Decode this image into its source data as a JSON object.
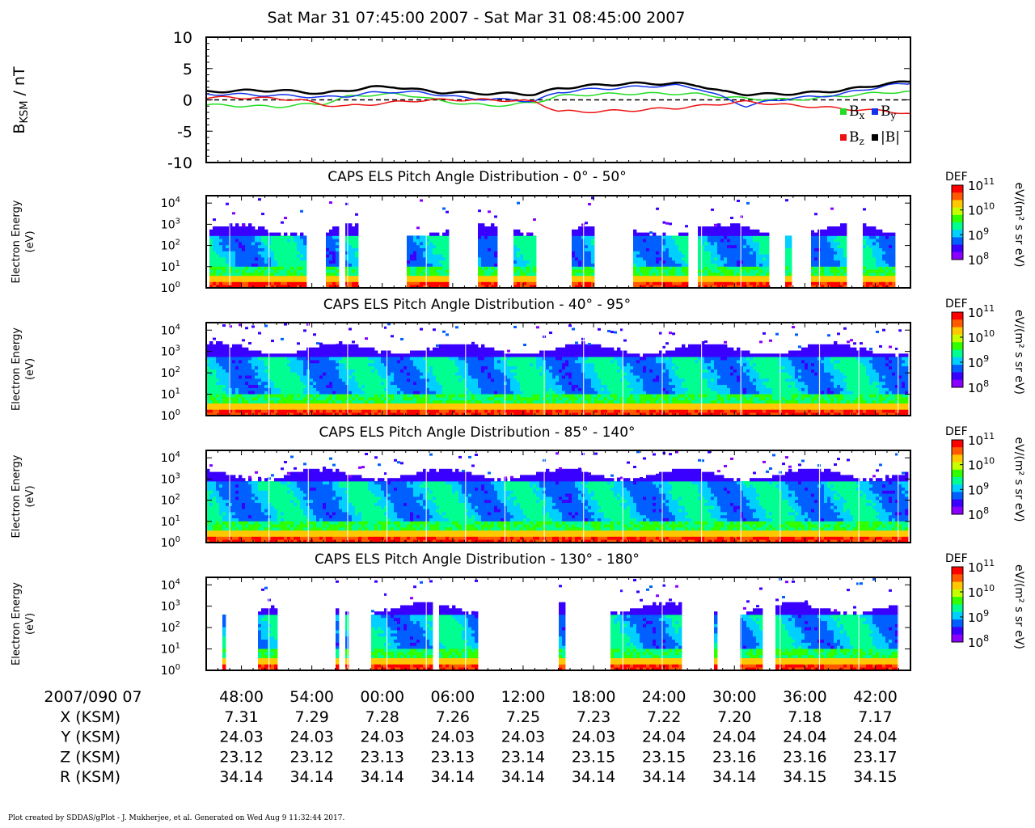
{
  "title": "Sat Mar 31 07:45:00 2007 - Sat Mar 31 08:45:00 2007",
  "footer": "Plot created by SDDAS/gPlot - J. Mukherjee, et al.  Generated on Wed Aug 9 11:32:44 2017.",
  "colors": {
    "bx": "#22dd22",
    "by": "#1133ee",
    "bz": "#ee1111",
    "bmag": "#000000",
    "colorbar": [
      "#8a00ff",
      "#3a00ff",
      "#0060ff",
      "#00d0ff",
      "#00ff90",
      "#30ff00",
      "#c8ff00",
      "#ffc800",
      "#ff5a00",
      "#ff0000"
    ]
  },
  "chart_data": [
    {
      "type": "line",
      "ylabel_main": "B",
      "ylabel_sub": "KSM",
      "ylabel_unit": " / nT",
      "ylim": [
        -10,
        10
      ],
      "yticks": [
        "10",
        "5",
        "0",
        "-5",
        "-10"
      ],
      "zero_line": "dashed",
      "legend": [
        "B",
        "x",
        "B",
        "y",
        "B",
        "z",
        "|B|"
      ],
      "x_minutes": [
        0,
        2,
        4,
        6,
        8,
        10,
        12,
        14,
        16,
        18,
        20,
        22,
        24,
        26,
        28,
        30,
        32,
        34,
        36,
        38,
        40,
        42,
        44,
        46,
        48,
        50,
        52,
        54,
        56,
        58,
        60
      ],
      "series": [
        {
          "key": "bx",
          "values": [
            -0.8,
            -0.9,
            -1.0,
            -1.1,
            -0.8,
            -0.6,
            0.5,
            0.8,
            0.9,
            0.6,
            -0.2,
            -0.6,
            -0.9,
            -0.8,
            -0.4,
            0.6,
            0.8,
            0.9,
            1.0,
            1.0,
            1.0,
            0.9,
            0.5,
            0.2,
            0.1,
            0.0,
            0.3,
            0.6,
            0.9,
            1.2,
            1.3
          ]
        },
        {
          "key": "by",
          "values": [
            0.9,
            0.9,
            0.8,
            0.7,
            0.6,
            0.4,
            0.6,
            1.1,
            1.3,
            1.2,
            0.8,
            0.3,
            0.1,
            0.0,
            -0.2,
            1.2,
            1.6,
            1.8,
            2.0,
            2.2,
            2.3,
            1.8,
            0.4,
            -1.0,
            -0.2,
            0.3,
            0.5,
            0.9,
            1.6,
            2.3,
            2.6
          ]
        },
        {
          "key": "bz",
          "values": [
            0.3,
            0.4,
            0.3,
            0.2,
            0.0,
            -0.8,
            -1.0,
            -0.7,
            -0.4,
            -0.1,
            0.0,
            0.0,
            0.0,
            -0.1,
            -0.3,
            -1.8,
            -1.9,
            -1.8,
            -1.7,
            -1.5,
            -1.3,
            -1.0,
            -0.6,
            -0.3,
            -0.6,
            -0.9,
            -1.1,
            -1.4,
            -1.6,
            -1.8,
            -2.2
          ]
        },
        {
          "key": "bmag",
          "values": [
            1.3,
            1.4,
            1.5,
            1.5,
            1.3,
            1.0,
            1.5,
            2.0,
            2.1,
            1.6,
            1.2,
            1.1,
            1.0,
            1.0,
            0.9,
            1.8,
            2.2,
            2.4,
            2.6,
            2.6,
            2.6,
            2.3,
            1.3,
            0.9,
            0.9,
            1.0,
            1.2,
            1.5,
            2.0,
            2.6,
            2.9
          ]
        }
      ]
    },
    {
      "type": "heatmap",
      "title": "CAPS ELS Pitch Angle Distribution - 0° - 50°",
      "ylabel": [
        "Electron Energy",
        "(eV)"
      ],
      "yticks": [
        "10",
        "10",
        "10",
        "10",
        "10"
      ],
      "ytick_exponents": [
        "0",
        "1",
        "2",
        "3",
        "4"
      ],
      "colorbar": {
        "label": "DEF",
        "unit": "eV/(m² s sr eV)",
        "ticks": [
          "10",
          "10",
          "10",
          "10"
        ],
        "tick_exponents": [
          "11",
          "10",
          "9",
          "8"
        ],
        "range_log10": [
          8,
          11
        ]
      },
      "coverage_minutes": [
        [
          0.3,
          8.5
        ],
        [
          10.3,
          11.3
        ],
        [
          11.8,
          13.0
        ],
        [
          17.2,
          20.6
        ],
        [
          23.2,
          24.8
        ],
        [
          26.4,
          28.2
        ],
        [
          31.2,
          33.3
        ],
        [
          36.4,
          41.2
        ],
        [
          42.0,
          48.2
        ],
        [
          49.6,
          50.0
        ],
        [
          51.6,
          54.8
        ],
        [
          56.2,
          58.9
        ]
      ],
      "core_energy_log10": [
        1.0,
        2.4
      ]
    },
    {
      "type": "heatmap",
      "title": "CAPS ELS Pitch Angle Distribution - 40° - 95°",
      "ylabel": [
        "Electron Energy",
        "(eV)"
      ],
      "yticks": [
        "10",
        "10",
        "10",
        "10",
        "10"
      ],
      "ytick_exponents": [
        "0",
        "1",
        "2",
        "3",
        "4"
      ],
      "colorbar": {
        "label": "DEF",
        "unit": "eV/(m² s sr eV)",
        "ticks": [
          "10",
          "10",
          "10",
          "10"
        ],
        "tick_exponents": [
          "11",
          "10",
          "9",
          "8"
        ],
        "range_log10": [
          8,
          11
        ]
      },
      "coverage_minutes": [
        [
          0.0,
          60.0
        ]
      ],
      "core_energy_log10": [
        1.0,
        2.8
      ]
    },
    {
      "type": "heatmap",
      "title": "CAPS ELS Pitch Angle Distribution - 85° - 140°",
      "ylabel": [
        "Electron Energy",
        "(eV)"
      ],
      "yticks": [
        "10",
        "10",
        "10",
        "10",
        "10"
      ],
      "ytick_exponents": [
        "0",
        "1",
        "2",
        "3",
        "4"
      ],
      "colorbar": {
        "label": "DEF",
        "unit": "eV/(m² s sr eV)",
        "ticks": [
          "10",
          "10",
          "10",
          "10"
        ],
        "tick_exponents": [
          "11",
          "10",
          "9",
          "8"
        ],
        "range_log10": [
          8,
          11
        ]
      },
      "coverage_minutes": [
        [
          0.0,
          60.0
        ]
      ],
      "core_energy_log10": [
        1.0,
        2.9
      ]
    },
    {
      "type": "heatmap",
      "title": "CAPS ELS Pitch Angle Distribution - 130° - 180°",
      "ylabel": [
        "Electron Energy",
        "(eV)"
      ],
      "yticks": [
        "10",
        "10",
        "10",
        "10",
        "10"
      ],
      "ytick_exponents": [
        "0",
        "1",
        "2",
        "3",
        "4"
      ],
      "colorbar": {
        "label": "DEF",
        "unit": "eV/(m² s sr eV)",
        "ticks": [
          "10",
          "10",
          "10",
          "10"
        ],
        "tick_exponents": [
          "11",
          "10",
          "9",
          "8"
        ],
        "range_log10": [
          8,
          11
        ]
      },
      "coverage_minutes": [
        [
          1.4,
          1.6
        ],
        [
          4.3,
          6.2
        ],
        [
          11.0,
          11.2
        ],
        [
          12.0,
          12.2
        ],
        [
          14.0,
          19.4
        ],
        [
          20.0,
          23.2
        ],
        [
          30.1,
          30.8
        ],
        [
          34.6,
          40.6
        ],
        [
          43.4,
          43.7
        ],
        [
          45.7,
          47.6
        ],
        [
          48.6,
          55.3
        ],
        [
          55.4,
          59.2
        ]
      ],
      "core_energy_log10": [
        1.0,
        2.6
      ]
    }
  ],
  "time_axis": {
    "row_label": "2007/090 07",
    "ticks": [
      "48:00",
      "54:00",
      "00:00",
      "06:00",
      "12:00",
      "18:00",
      "24:00",
      "30:00",
      "36:00",
      "42:00"
    ],
    "tick_minutes": [
      3,
      9,
      15,
      21,
      27,
      33,
      39,
      45,
      51,
      57
    ]
  },
  "ephemeris": [
    {
      "label": "X (KSM)",
      "values": [
        "7.31",
        "7.29",
        "7.28",
        "7.26",
        "7.25",
        "7.23",
        "7.22",
        "7.20",
        "7.18",
        "7.17"
      ]
    },
    {
      "label": "Y (KSM)",
      "values": [
        "24.03",
        "24.03",
        "24.03",
        "24.03",
        "24.03",
        "24.03",
        "24.04",
        "24.04",
        "24.04",
        "24.04"
      ]
    },
    {
      "label": "Z (KSM)",
      "values": [
        "23.12",
        "23.12",
        "23.13",
        "23.13",
        "23.14",
        "23.15",
        "23.15",
        "23.16",
        "23.16",
        "23.17"
      ]
    },
    {
      "label": "R (KSM)",
      "values": [
        "34.14",
        "34.14",
        "34.14",
        "34.14",
        "34.14",
        "34.14",
        "34.14",
        "34.14",
        "34.15",
        "34.15"
      ]
    }
  ]
}
